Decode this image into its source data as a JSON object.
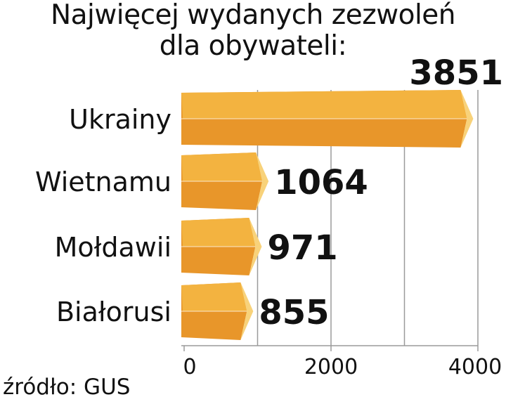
{
  "title_lines": [
    "Najwięcej wydanych zezwoleń",
    "dla obywateli:"
  ],
  "source": "źródło: GUS",
  "colors": {
    "bar_top": "#f3b340",
    "bar_front": "#e8962a",
    "bar_end": "#f8d27a",
    "grid": "#9a9a9a",
    "text": "#111111"
  },
  "chart_data": {
    "type": "bar",
    "orientation": "horizontal",
    "title": "Najwięcej wydanych zezwoleń dla obywateli:",
    "categories": [
      "Ukrainy",
      "Wietnamu",
      "Mołdawii",
      "Białorusi"
    ],
    "values": [
      3851,
      1064,
      971,
      855
    ],
    "xlim": [
      0,
      4000
    ],
    "xticks": [
      0,
      2000,
      4000
    ],
    "grid": true,
    "data_labels": [
      "3851",
      "1064",
      "971",
      "855"
    ]
  }
}
